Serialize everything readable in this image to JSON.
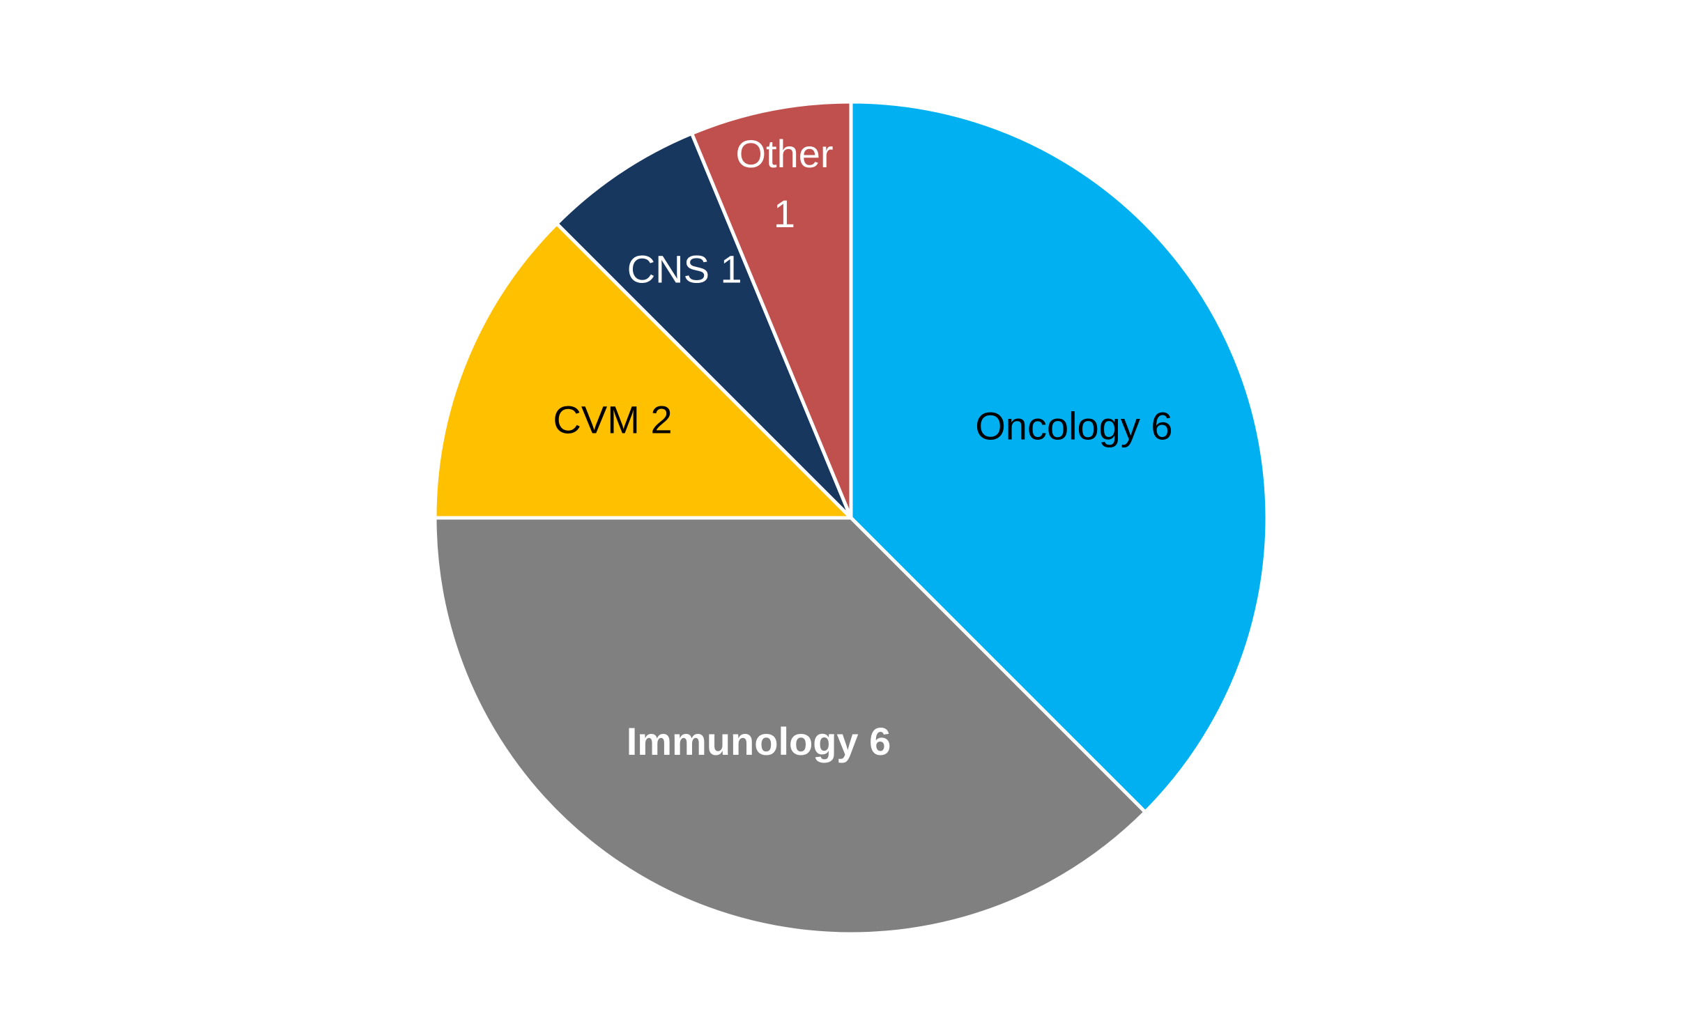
{
  "chart_data": {
    "type": "pie",
    "title": "",
    "start_angle_deg": 0,
    "direction": "clockwise",
    "slices": [
      {
        "name": "Oncology",
        "value": 6,
        "color": "#00B0F0",
        "label": "Oncology 6",
        "label_color": "#000000",
        "label_bold": false
      },
      {
        "name": "Immunology",
        "value": 6,
        "color": "#808080",
        "label": "Immunology 6",
        "label_color": "#ffffff",
        "label_bold": true
      },
      {
        "name": "CVM",
        "value": 2,
        "color": "#FFC000",
        "label": "CVM 2",
        "label_color": "#000000",
        "label_bold": false
      },
      {
        "name": "CNS",
        "value": 1,
        "color": "#17375E",
        "label": "CNS 1",
        "label_color": "#ffffff",
        "label_bold": false
      },
      {
        "name": "Other",
        "value": 1,
        "color": "#C0504D",
        "label": "Other\n1",
        "label_color": "#ffffff",
        "label_bold": false
      }
    ]
  }
}
